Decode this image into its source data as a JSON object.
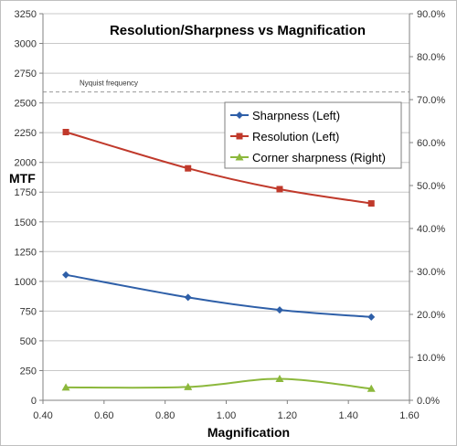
{
  "chart_data": {
    "type": "line",
    "title": "Resolution/Sharpness vs Magnification",
    "xlabel": "Magnification",
    "ylabel": "MTF",
    "xlim": [
      0.4,
      1.6
    ],
    "ylim_left": [
      0,
      3250
    ],
    "ylim_right": [
      0,
      90
    ],
    "x_ticks": [
      "0.40",
      "0.60",
      "0.80",
      "1.00",
      "1.20",
      "1.40",
      "1.60"
    ],
    "y_ticks_left": [
      "0",
      "250",
      "500",
      "750",
      "1000",
      "1250",
      "1500",
      "1750",
      "2000",
      "2250",
      "2500",
      "2750",
      "3000",
      "3250"
    ],
    "y_ticks_right": [
      "0.0%",
      "10.0%",
      "20.0%",
      "30.0%",
      "40.0%",
      "50.0%",
      "60.0%",
      "70.0%",
      "80.0%",
      "90.0%"
    ],
    "grid": "horizontal",
    "legend_position": "right-middle",
    "reference_line": {
      "label": "Nyquist frequency",
      "y": 2592,
      "axis": "left"
    },
    "series": [
      {
        "name": "Sharpness (Left)",
        "axis": "left",
        "marker": "diamond",
        "color": "#2e5fa8",
        "x": [
          0.475,
          0.875,
          1.175,
          1.475
        ],
        "values": [
          1055,
          865,
          760,
          700
        ]
      },
      {
        "name": "Resolution (Left)",
        "axis": "left",
        "marker": "square",
        "color": "#c0392b",
        "x": [
          0.475,
          0.875,
          1.175,
          1.475
        ],
        "values": [
          2255,
          1950,
          1775,
          1655
        ]
      },
      {
        "name": "Corner sharpness (Right)",
        "axis": "right",
        "marker": "triangle",
        "color": "#8cb83c",
        "x": [
          0.475,
          0.875,
          1.175,
          1.475
        ],
        "values": [
          3.0,
          3.1,
          5.0,
          2.7
        ]
      }
    ]
  }
}
